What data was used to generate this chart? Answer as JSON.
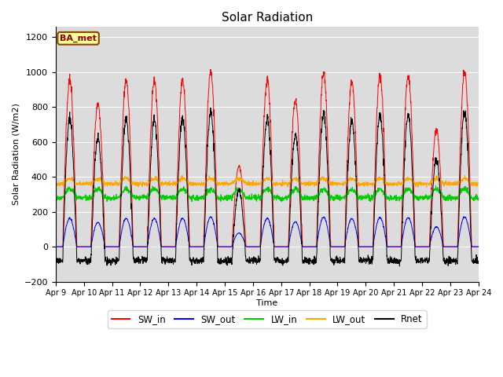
{
  "title": "Solar Radiation",
  "xlabel": "Time",
  "ylabel": "Solar Radiation (W/m2)",
  "ylim": [
    -200,
    1260
  ],
  "yticks": [
    -200,
    0,
    200,
    400,
    600,
    800,
    1000,
    1200
  ],
  "n_days": 15,
  "pts_per_day": 144,
  "day_peaks_SW": [
    950,
    820,
    950,
    950,
    950,
    1000,
    460,
    950,
    840,
    990,
    950,
    980,
    980,
    670,
    1000
  ],
  "colors": {
    "SW_in": "#ff0000",
    "SW_out": "#0000ff",
    "LW_in": "#00cc00",
    "LW_out": "#ffa500",
    "Rnet": "#000000"
  },
  "background_color": "#dcdcdc",
  "legend_label": "BA_met",
  "legend_box_color": "#ffff99",
  "legend_box_edge": "#8B4500",
  "figsize": [
    6.4,
    4.8
  ],
  "dpi": 100
}
